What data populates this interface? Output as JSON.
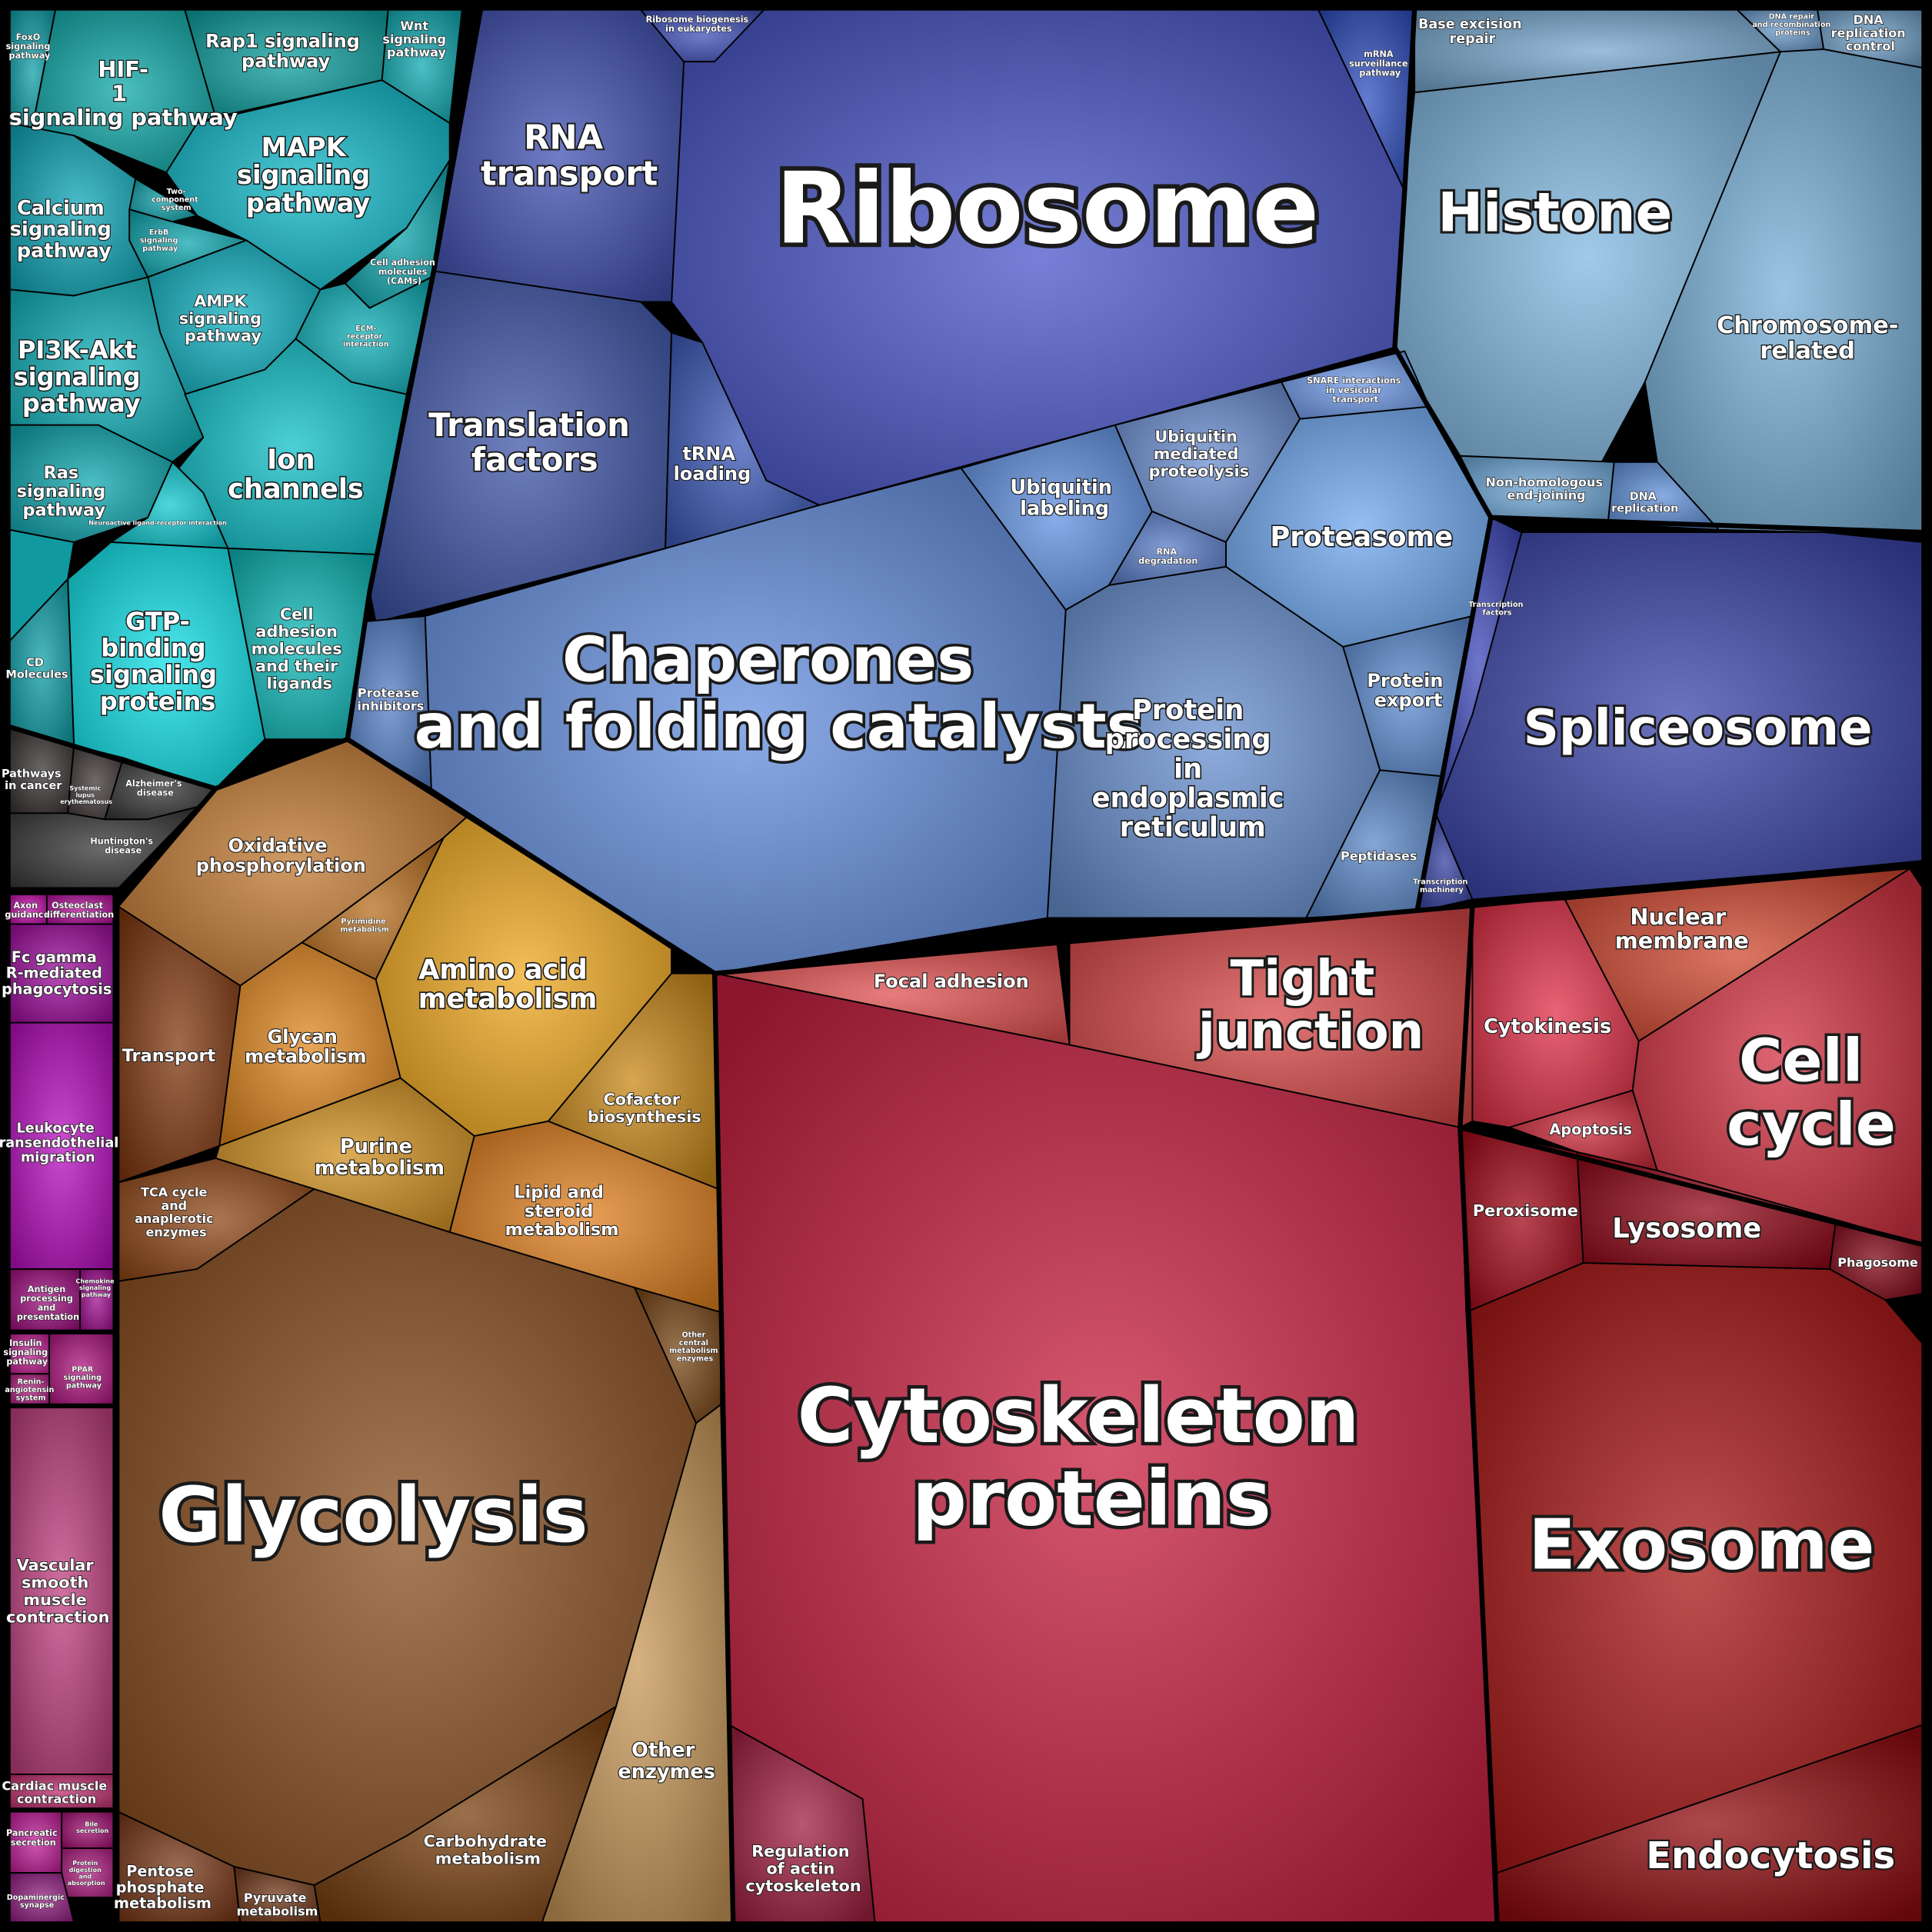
{
  "chart_data": {
    "type": "voronoi-treemap",
    "cells": [
      {
        "label": "Ribosome",
        "color": "#4a55c8"
      },
      {
        "label": "RNA transport",
        "color": "#4050b0"
      },
      {
        "label": "Translation factors",
        "color": "#3f55a8"
      },
      {
        "label": "tRNA loading",
        "color": "#3d5ab8"
      },
      {
        "label": "Ribosome biogenesis in eukaryotes",
        "color": "#4050b8"
      },
      {
        "label": "mRNA surveillance pathway",
        "color": "#3050c0"
      },
      {
        "label": "Histone",
        "color": "#80b8e0"
      },
      {
        "label": "Base excision repair",
        "color": "#78a8d0"
      },
      {
        "label": "DNA replication control",
        "color": "#70a0c8"
      },
      {
        "label": "DNA repair and recombination proteins",
        "color": "#6898c8"
      },
      {
        "label": "Chromosome-related",
        "color": "#78b0d8"
      },
      {
        "label": "Non-homologous end-joining",
        "color": "#70a8d8"
      },
      {
        "label": "DNA replication",
        "color": "#6090d8"
      },
      {
        "label": "Chaperones and folding catalysts",
        "color": "#6590e0"
      },
      {
        "label": "Protease inhibitors",
        "color": "#5580c8"
      },
      {
        "label": "Ubiquitin labeling",
        "color": "#6090e0"
      },
      {
        "label": "Ubiquitin mediated proteolysis",
        "color": "#6a8ed0"
      },
      {
        "label": "RNA degradation",
        "color": "#5a7ec8"
      },
      {
        "label": "SNARE interactions in vesicular transport",
        "color": "#6f9ae8"
      },
      {
        "label": "Proteasome",
        "color": "#70a8f0"
      },
      {
        "label": "Protein processing in endoplasmic reticulum",
        "color": "#6890d0"
      },
      {
        "label": "Protein export",
        "color": "#5d8cd0"
      },
      {
        "label": "Peptidases",
        "color": "#5b88c8"
      },
      {
        "label": "Spliceosome",
        "color": "#3a45a8"
      },
      {
        "label": "Transcription factors",
        "color": "#3d48b8"
      },
      {
        "label": "Transcription machinery",
        "color": "#3540a0"
      },
      {
        "label": "FoxO signaling pathway",
        "color": "#10a0a8"
      },
      {
        "label": "HIF-1 signaling pathway",
        "color": "#10a8a8"
      },
      {
        "label": "Rap1 signaling pathway",
        "color": "#10a0a0"
      },
      {
        "label": "Wnt signaling pathway",
        "color": "#10a8b0"
      },
      {
        "label": "MAPK signaling pathway",
        "color": "#10b8c8"
      },
      {
        "label": "Calcium signaling pathway",
        "color": "#10a8b8"
      },
      {
        "label": "Two-component system",
        "color": "#10a0a8"
      },
      {
        "label": "ErbB signaling pathway",
        "color": "#10a8b0"
      },
      {
        "label": "AMPK signaling pathway",
        "color": "#10b0c0"
      },
      {
        "label": "Cell adhesion molecules (CAMs)",
        "color": "#10a8b0"
      },
      {
        "label": "ECM-receptor interaction",
        "color": "#10b0b8"
      },
      {
        "label": "PI3K-Akt signaling pathway",
        "color": "#10b0b8"
      },
      {
        "label": "Ion channels",
        "color": "#10c0c8"
      },
      {
        "label": "Ras signaling pathway",
        "color": "#10a8b0"
      },
      {
        "label": "Neuroactive ligand-receptor interaction",
        "color": "#10c8d0"
      },
      {
        "label": "GTP-binding signaling proteins",
        "color": "#10e0e8"
      },
      {
        "label": "Cell adhesion molecules and their ligands",
        "color": "#10b8b8"
      },
      {
        "label": "CD Molecules",
        "color": "#10a0a8"
      },
      {
        "label": "Pathways in cancer",
        "color": "#3a3434"
      },
      {
        "label": "Systemic lupus erythematosus",
        "color": "#403838"
      },
      {
        "label": "Alzheimer's disease",
        "color": "#383838"
      },
      {
        "label": "Huntington's disease",
        "color": "#3a3a3a"
      },
      {
        "label": "Oxidative phosphorylation",
        "color": "#c07830"
      },
      {
        "label": "Pyrimidine metabolism",
        "color": "#b87020"
      },
      {
        "label": "Amino acid metabolism",
        "color": "#f0a820"
      },
      {
        "label": "Glycan metabolism",
        "color": "#e08820"
      },
      {
        "label": "Transport",
        "color": "#803810"
      },
      {
        "label": "Purine metabolism",
        "color": "#d09020"
      },
      {
        "label": "Cofactor biosynthesis",
        "color": "#c88818"
      },
      {
        "label": "Lipid and steroid metabolism",
        "color": "#e08020"
      },
      {
        "label": "TCA cycle and anaplerotic enzymes",
        "color": "#904818"
      },
      {
        "label": "Glycolysis",
        "color": "#8a4f20"
      },
      {
        "label": "Other central metabolism enzymes",
        "color": "#7a4818"
      },
      {
        "label": "Other enzymes",
        "color": "#c89858"
      },
      {
        "label": "Carbohydrate metabolism",
        "color": "#7a4010"
      },
      {
        "label": "Pentose phosphate metabolism",
        "color": "#7a3818"
      },
      {
        "label": "Pyruvate metabolism",
        "color": "#703818"
      },
      {
        "label": "Axon guidance",
        "color": "#c010a8"
      },
      {
        "label": "Osteoclast differentiation",
        "color": "#b01098"
      },
      {
        "label": "Fc gamma R-mediated phagocytosis",
        "color": "#a010a0"
      },
      {
        "label": "Leukocyte transendothelial migration",
        "color": "#b810c0"
      },
      {
        "label": "Antigen processing and presentation",
        "color": "#a01080"
      },
      {
        "label": "Chemokine signaling pathway",
        "color": "#a01090"
      },
      {
        "label": "Insulin signaling pathway",
        "color": "#c02090"
      },
      {
        "label": "PPAR signaling pathway",
        "color": "#b01880"
      },
      {
        "label": "Renin-angiotensin system",
        "color": "#b02080"
      },
      {
        "label": "Vascular smooth muscle contraction",
        "color": "#c04080"
      },
      {
        "label": "Cardiac muscle contraction",
        "color": "#c03070"
      },
      {
        "label": "Pancreatic secretion",
        "color": "#c02098"
      },
      {
        "label": "Protein digestion and absorption",
        "color": "#b02080"
      },
      {
        "label": "Bile secretion",
        "color": "#a01070"
      },
      {
        "label": "Dopaminergic synapse",
        "color": "#902080"
      },
      {
        "label": "Focal adhesion",
        "color": "#e05050"
      },
      {
        "label": "Tight junction",
        "color": "#d84848"
      },
      {
        "label": "Cytoskeleton proteins",
        "color": "#c82040"
      },
      {
        "label": "Regulation of actin cytoskeleton",
        "color": "#a02040"
      },
      {
        "label": "Nuclear membrane",
        "color": "#d04830"
      },
      {
        "label": "Cytokinesis",
        "color": "#e03048"
      },
      {
        "label": "Cell cycle",
        "color": "#d03040"
      },
      {
        "label": "Apoptosis",
        "color": "#c82838"
      },
      {
        "label": "Peroxisome",
        "color": "#a00818"
      },
      {
        "label": "Lysosome",
        "color": "#900818"
      },
      {
        "label": "Phagosome",
        "color": "#800818"
      },
      {
        "label": "Exosome",
        "color": "#a81515"
      },
      {
        "label": "Endocytosis",
        "color": "#900c10"
      }
    ]
  }
}
